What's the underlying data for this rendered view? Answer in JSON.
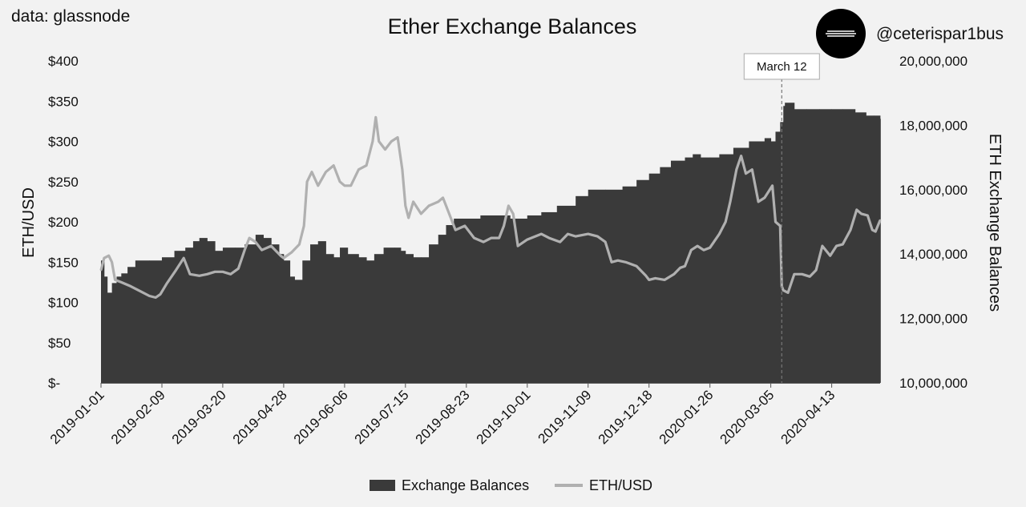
{
  "source": "data: glassnode",
  "handle": "@ceterispar1bus",
  "chart_data": {
    "type": "bar+line",
    "title": "Ether Exchange Balances",
    "x_tick_labels": [
      "2019-01-01",
      "2019-02-09",
      "2019-03-20",
      "2019-04-28",
      "2019-06-06",
      "2019-07-15",
      "2019-08-23",
      "2019-10-01",
      "2019-11-09",
      "2019-12-18",
      "2020-01-26",
      "2020-03-05",
      "2020-04-13"
    ],
    "x_range": [
      "2019-01-01",
      "2020-05-14"
    ],
    "y_left": {
      "label": "ETH/USD",
      "range": [
        0,
        400
      ],
      "ticks": [
        0,
        50,
        100,
        150,
        200,
        250,
        300,
        350,
        400
      ],
      "tick_labels": [
        "$-",
        "$50",
        "$100",
        "$150",
        "$200",
        "$250",
        "$300",
        "$350",
        "$400"
      ]
    },
    "y_right": {
      "label": "ETH Exchange Balances",
      "range": [
        10000000,
        20000000
      ],
      "ticks": [
        10000000,
        12000000,
        14000000,
        16000000,
        18000000,
        20000000
      ],
      "tick_labels": [
        "10,000,000",
        "12,000,000",
        "14,000,000",
        "16,000,000",
        "18,000,000",
        "20,000,000"
      ]
    },
    "annotation": {
      "date": "2020-03-12",
      "text": "March 12"
    },
    "legend": {
      "position": "bottom",
      "entries": [
        "Exchange Balances",
        "ETH/USD"
      ]
    },
    "series": [
      {
        "name": "Exchange Balances",
        "type": "bar",
        "axis": "right",
        "color": "#3a3a3a",
        "points": [
          [
            "2019-01-01",
            13800000
          ],
          [
            "2019-01-03",
            13300000
          ],
          [
            "2019-01-05",
            12800000
          ],
          [
            "2019-01-08",
            13100000
          ],
          [
            "2019-01-11",
            13300000
          ],
          [
            "2019-01-14",
            13400000
          ],
          [
            "2019-01-18",
            13600000
          ],
          [
            "2019-01-23",
            13800000
          ],
          [
            "2019-02-01",
            13800000
          ],
          [
            "2019-02-09",
            13900000
          ],
          [
            "2019-02-17",
            14100000
          ],
          [
            "2019-02-24",
            14200000
          ],
          [
            "2019-03-01",
            14400000
          ],
          [
            "2019-03-05",
            14500000
          ],
          [
            "2019-03-10",
            14400000
          ],
          [
            "2019-03-15",
            14100000
          ],
          [
            "2019-03-20",
            14200000
          ],
          [
            "2019-03-28",
            14200000
          ],
          [
            "2019-04-03",
            14300000
          ],
          [
            "2019-04-10",
            14600000
          ],
          [
            "2019-04-15",
            14500000
          ],
          [
            "2019-04-20",
            14300000
          ],
          [
            "2019-04-25",
            14000000
          ],
          [
            "2019-04-28",
            13800000
          ],
          [
            "2019-05-02",
            13300000
          ],
          [
            "2019-05-05",
            13200000
          ],
          [
            "2019-05-10",
            13800000
          ],
          [
            "2019-05-15",
            14300000
          ],
          [
            "2019-05-20",
            14400000
          ],
          [
            "2019-05-25",
            14000000
          ],
          [
            "2019-05-30",
            13900000
          ],
          [
            "2019-06-03",
            14200000
          ],
          [
            "2019-06-08",
            14000000
          ],
          [
            "2019-06-15",
            13900000
          ],
          [
            "2019-06-20",
            13800000
          ],
          [
            "2019-06-25",
            14000000
          ],
          [
            "2019-07-01",
            14200000
          ],
          [
            "2019-07-08",
            14200000
          ],
          [
            "2019-07-12",
            14100000
          ],
          [
            "2019-07-15",
            14000000
          ],
          [
            "2019-07-20",
            13900000
          ],
          [
            "2019-07-25",
            13900000
          ],
          [
            "2019-07-30",
            14300000
          ],
          [
            "2019-08-05",
            14600000
          ],
          [
            "2019-08-10",
            14900000
          ],
          [
            "2019-08-15",
            15100000
          ],
          [
            "2019-08-20",
            15100000
          ],
          [
            "2019-09-01",
            15200000
          ],
          [
            "2019-09-10",
            15200000
          ],
          [
            "2019-09-20",
            15100000
          ],
          [
            "2019-10-01",
            15200000
          ],
          [
            "2019-10-10",
            15300000
          ],
          [
            "2019-10-20",
            15500000
          ],
          [
            "2019-11-01",
            15800000
          ],
          [
            "2019-11-09",
            16000000
          ],
          [
            "2019-11-20",
            16000000
          ],
          [
            "2019-12-01",
            16100000
          ],
          [
            "2019-12-10",
            16300000
          ],
          [
            "2019-12-18",
            16500000
          ],
          [
            "2019-12-25",
            16700000
          ],
          [
            "2020-01-01",
            16900000
          ],
          [
            "2020-01-10",
            17000000
          ],
          [
            "2020-01-15",
            17100000
          ],
          [
            "2020-01-20",
            17000000
          ],
          [
            "2020-01-26",
            17000000
          ],
          [
            "2020-02-01",
            17100000
          ],
          [
            "2020-02-10",
            17300000
          ],
          [
            "2020-02-20",
            17500000
          ],
          [
            "2020-03-01",
            17600000
          ],
          [
            "2020-03-05",
            17500000
          ],
          [
            "2020-03-08",
            17800000
          ],
          [
            "2020-03-11",
            18100000
          ],
          [
            "2020-03-13",
            18600000
          ],
          [
            "2020-03-14",
            18700000
          ],
          [
            "2020-03-20",
            18500000
          ],
          [
            "2020-03-28",
            18500000
          ],
          [
            "2020-04-05",
            18500000
          ],
          [
            "2020-04-13",
            18500000
          ],
          [
            "2020-04-20",
            18500000
          ],
          [
            "2020-04-28",
            18400000
          ],
          [
            "2020-05-05",
            18300000
          ],
          [
            "2020-05-10",
            18300000
          ],
          [
            "2020-05-14",
            18200000
          ]
        ]
      },
      {
        "name": "ETH/USD",
        "type": "line",
        "axis": "left",
        "color": "#b0b0b0",
        "points": [
          [
            "2019-01-01",
            140
          ],
          [
            "2019-01-03",
            155
          ],
          [
            "2019-01-06",
            158
          ],
          [
            "2019-01-08",
            150
          ],
          [
            "2019-01-10",
            128
          ],
          [
            "2019-01-14",
            125
          ],
          [
            "2019-01-20",
            120
          ],
          [
            "2019-01-26",
            114
          ],
          [
            "2019-02-01",
            108
          ],
          [
            "2019-02-05",
            106
          ],
          [
            "2019-02-08",
            110
          ],
          [
            "2019-02-12",
            123
          ],
          [
            "2019-02-18",
            140
          ],
          [
            "2019-02-23",
            155
          ],
          [
            "2019-02-27",
            135
          ],
          [
            "2019-03-05",
            133
          ],
          [
            "2019-03-10",
            135
          ],
          [
            "2019-03-15",
            138
          ],
          [
            "2019-03-20",
            138
          ],
          [
            "2019-03-25",
            135
          ],
          [
            "2019-03-30",
            142
          ],
          [
            "2019-04-03",
            165
          ],
          [
            "2019-04-06",
            180
          ],
          [
            "2019-04-10",
            175
          ],
          [
            "2019-04-14",
            165
          ],
          [
            "2019-04-20",
            170
          ],
          [
            "2019-04-26",
            158
          ],
          [
            "2019-04-28",
            155
          ],
          [
            "2019-05-03",
            162
          ],
          [
            "2019-05-08",
            172
          ],
          [
            "2019-05-11",
            195
          ],
          [
            "2019-05-13",
            250
          ],
          [
            "2019-05-16",
            262
          ],
          [
            "2019-05-20",
            245
          ],
          [
            "2019-05-25",
            262
          ],
          [
            "2019-05-30",
            270
          ],
          [
            "2019-06-03",
            250
          ],
          [
            "2019-06-06",
            245
          ],
          [
            "2019-06-10",
            245
          ],
          [
            "2019-06-15",
            265
          ],
          [
            "2019-06-20",
            270
          ],
          [
            "2019-06-24",
            300
          ],
          [
            "2019-06-26",
            330
          ],
          [
            "2019-06-28",
            300
          ],
          [
            "2019-07-02",
            290
          ],
          [
            "2019-07-06",
            300
          ],
          [
            "2019-07-10",
            305
          ],
          [
            "2019-07-13",
            265
          ],
          [
            "2019-07-15",
            220
          ],
          [
            "2019-07-17",
            205
          ],
          [
            "2019-07-20",
            225
          ],
          [
            "2019-07-25",
            210
          ],
          [
            "2019-07-30",
            220
          ],
          [
            "2019-08-05",
            225
          ],
          [
            "2019-08-08",
            230
          ],
          [
            "2019-08-12",
            210
          ],
          [
            "2019-08-16",
            190
          ],
          [
            "2019-08-22",
            195
          ],
          [
            "2019-08-28",
            180
          ],
          [
            "2019-09-03",
            175
          ],
          [
            "2019-09-08",
            180
          ],
          [
            "2019-09-13",
            180
          ],
          [
            "2019-09-16",
            195
          ],
          [
            "2019-09-19",
            220
          ],
          [
            "2019-09-22",
            210
          ],
          [
            "2019-09-25",
            170
          ],
          [
            "2019-10-01",
            178
          ],
          [
            "2019-10-10",
            185
          ],
          [
            "2019-10-15",
            180
          ],
          [
            "2019-10-22",
            175
          ],
          [
            "2019-10-27",
            185
          ],
          [
            "2019-11-01",
            182
          ],
          [
            "2019-11-09",
            185
          ],
          [
            "2019-11-15",
            182
          ],
          [
            "2019-11-20",
            175
          ],
          [
            "2019-11-24",
            150
          ],
          [
            "2019-11-28",
            152
          ],
          [
            "2019-12-03",
            150
          ],
          [
            "2019-12-10",
            145
          ],
          [
            "2019-12-16",
            133
          ],
          [
            "2019-12-18",
            128
          ],
          [
            "2019-12-22",
            130
          ],
          [
            "2019-12-28",
            128
          ],
          [
            "2020-01-03",
            135
          ],
          [
            "2020-01-07",
            143
          ],
          [
            "2020-01-10",
            145
          ],
          [
            "2020-01-14",
            165
          ],
          [
            "2020-01-18",
            170
          ],
          [
            "2020-01-22",
            165
          ],
          [
            "2020-01-26",
            168
          ],
          [
            "2020-02-01",
            185
          ],
          [
            "2020-02-05",
            200
          ],
          [
            "2020-02-08",
            225
          ],
          [
            "2020-02-12",
            265
          ],
          [
            "2020-02-15",
            282
          ],
          [
            "2020-02-18",
            260
          ],
          [
            "2020-02-22",
            265
          ],
          [
            "2020-02-26",
            225
          ],
          [
            "2020-03-01",
            230
          ],
          [
            "2020-03-06",
            245
          ],
          [
            "2020-03-08",
            200
          ],
          [
            "2020-03-11",
            195
          ],
          [
            "2020-03-12",
            120
          ],
          [
            "2020-03-13",
            115
          ],
          [
            "2020-03-16",
            112
          ],
          [
            "2020-03-20",
            135
          ],
          [
            "2020-03-25",
            135
          ],
          [
            "2020-03-30",
            132
          ],
          [
            "2020-04-03",
            140
          ],
          [
            "2020-04-07",
            170
          ],
          [
            "2020-04-12",
            158
          ],
          [
            "2020-04-16",
            170
          ],
          [
            "2020-04-20",
            172
          ],
          [
            "2020-04-25",
            190
          ],
          [
            "2020-04-29",
            215
          ],
          [
            "2020-05-02",
            210
          ],
          [
            "2020-05-06",
            208
          ],
          [
            "2020-05-09",
            190
          ],
          [
            "2020-05-11",
            188
          ],
          [
            "2020-05-14",
            202
          ]
        ]
      }
    ]
  }
}
